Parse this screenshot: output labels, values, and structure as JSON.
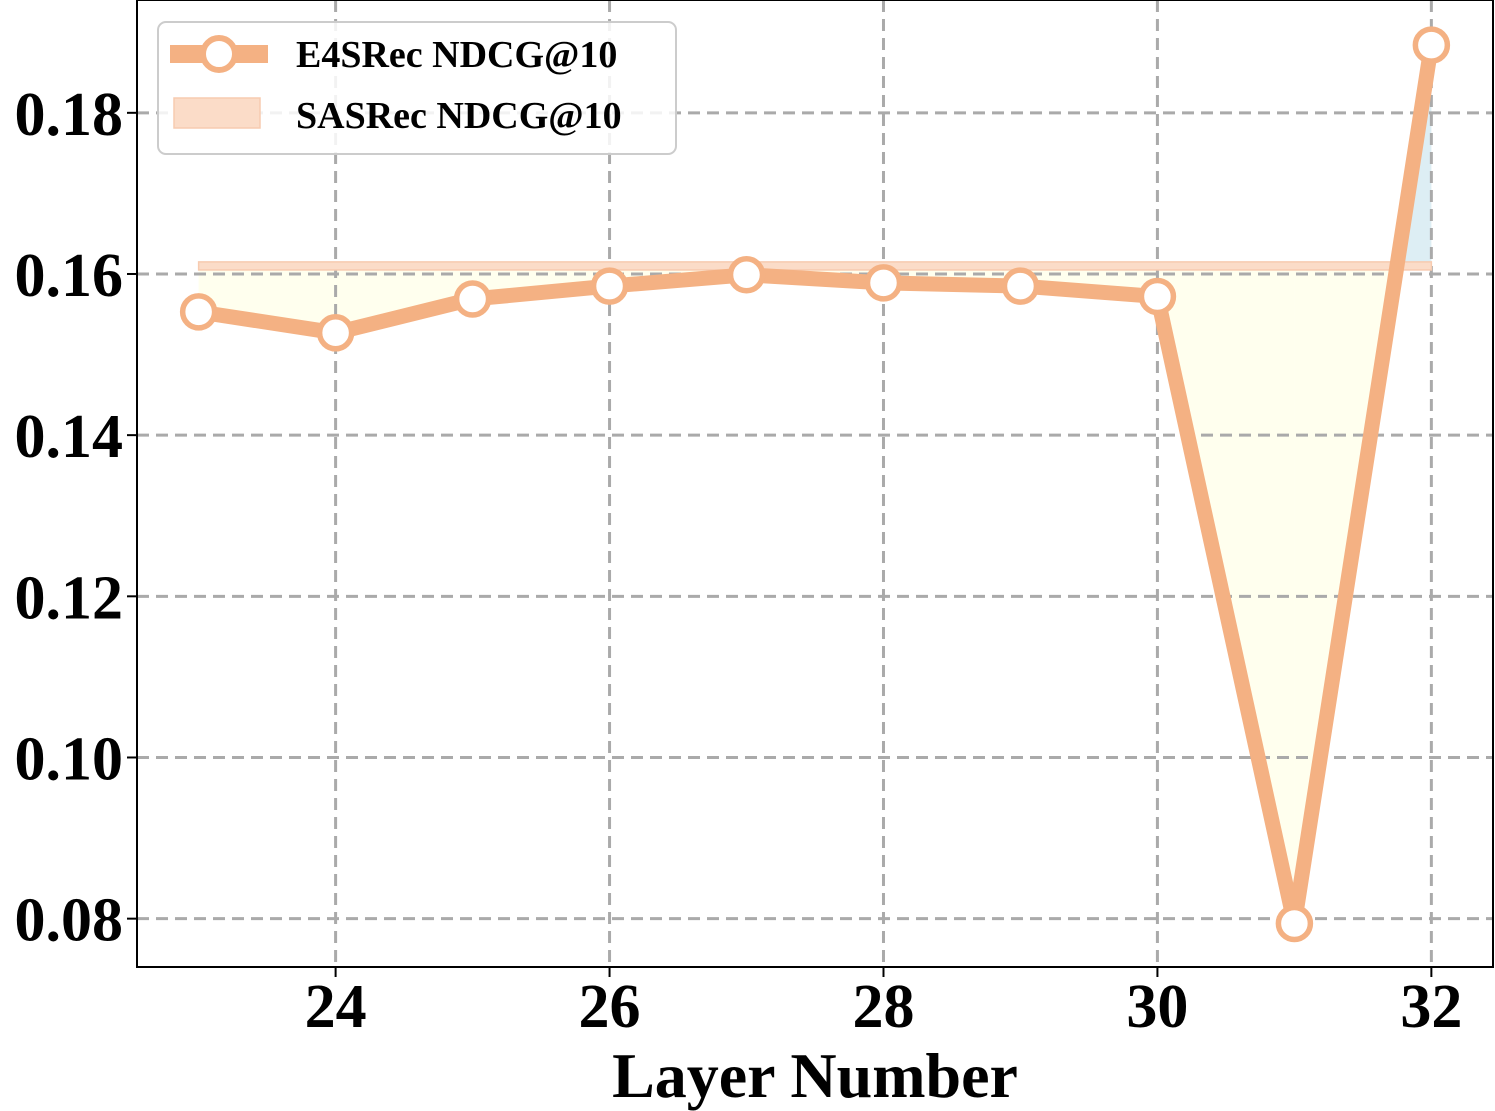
{
  "chart_data": {
    "type": "line",
    "title": "",
    "xlabel": "Layer Number",
    "ylabel": "",
    "xlim": [
      22.55,
      32.45
    ],
    "ylim": [
      0.074,
      0.194
    ],
    "xticks": [
      24,
      26,
      28,
      30,
      32
    ],
    "yticks": [
      0.08,
      0.1,
      0.12,
      0.14,
      0.16,
      0.18
    ],
    "ytick_labels": [
      "0.08",
      "0.10",
      "0.12",
      "0.14",
      "0.16",
      "0.18"
    ],
    "grid": true,
    "legend_position": "upper-left",
    "series": [
      {
        "name": "E4SRec NDCG@10",
        "kind": "line-with-markers",
        "x": [
          23,
          24,
          25,
          26,
          27,
          28,
          29,
          30,
          31,
          32
        ],
        "values": [
          0.1553,
          0.1527,
          0.1569,
          0.1585,
          0.1599,
          0.1589,
          0.1585,
          0.1572,
          0.0794,
          0.1884
        ],
        "color": "#F4B183"
      },
      {
        "name": "SASRec NDCG@10",
        "kind": "band",
        "x_range": [
          23,
          32
        ],
        "value_low": 0.1605,
        "value_high": 0.1615,
        "color": "#FBDCC8"
      }
    ],
    "fills": {
      "below_baseline_color": "#FFFFEE",
      "above_baseline_color": "#DDEEF4",
      "baseline": 0.1605
    }
  }
}
